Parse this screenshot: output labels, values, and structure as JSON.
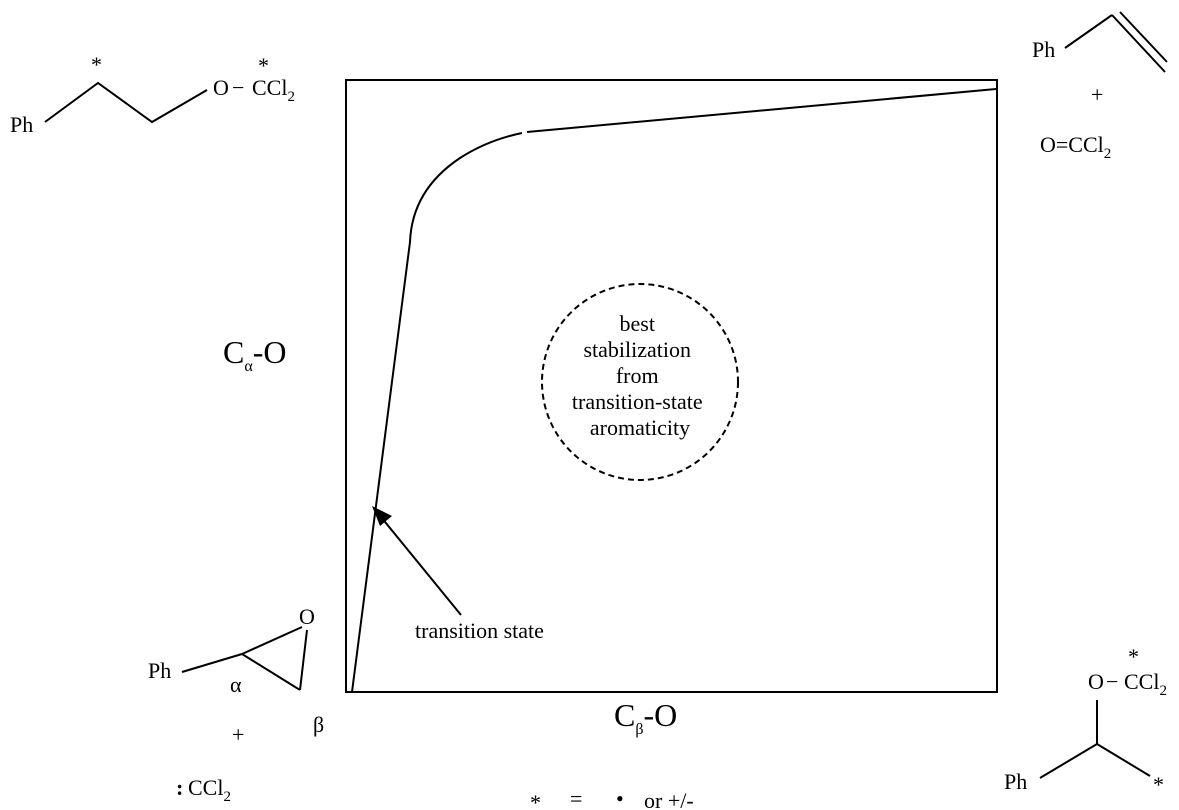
{
  "axes": {
    "y_label": "C",
    "y_label_sub": "α",
    "y_label_suffix": "-O",
    "x_label": "C",
    "x_label_sub": "β",
    "x_label_suffix": "-O"
  },
  "center_annotation": {
    "lines": [
      "best",
      "stabilization",
      "from",
      "transition-state",
      "aromaticity"
    ]
  },
  "transition_state_label": "transition state",
  "corners": {
    "top_left": {
      "ph": "Ph",
      "star1": "*",
      "star2": "*",
      "group": "O",
      "dash": "−",
      "ccl": "CCl",
      "sub2": "2"
    },
    "top_right": {
      "ph": "Ph",
      "plus": "+",
      "carbonyl": "O=CCl",
      "sub2": "2"
    },
    "bottom_left": {
      "ph": "Ph",
      "o": "O",
      "alpha": "α",
      "beta": "β",
      "plus": "+",
      "colon": ":",
      "ccl": "CCl",
      "sub2": "2"
    },
    "bottom_right": {
      "ph": "Ph",
      "o": "O",
      "dash": "−",
      "ccl": "CCl",
      "sub2": "2",
      "star1": "*",
      "star2": "*"
    }
  },
  "legend": {
    "star": "*",
    "equals": "=",
    "dot": "•",
    "text": "or +/-"
  }
}
